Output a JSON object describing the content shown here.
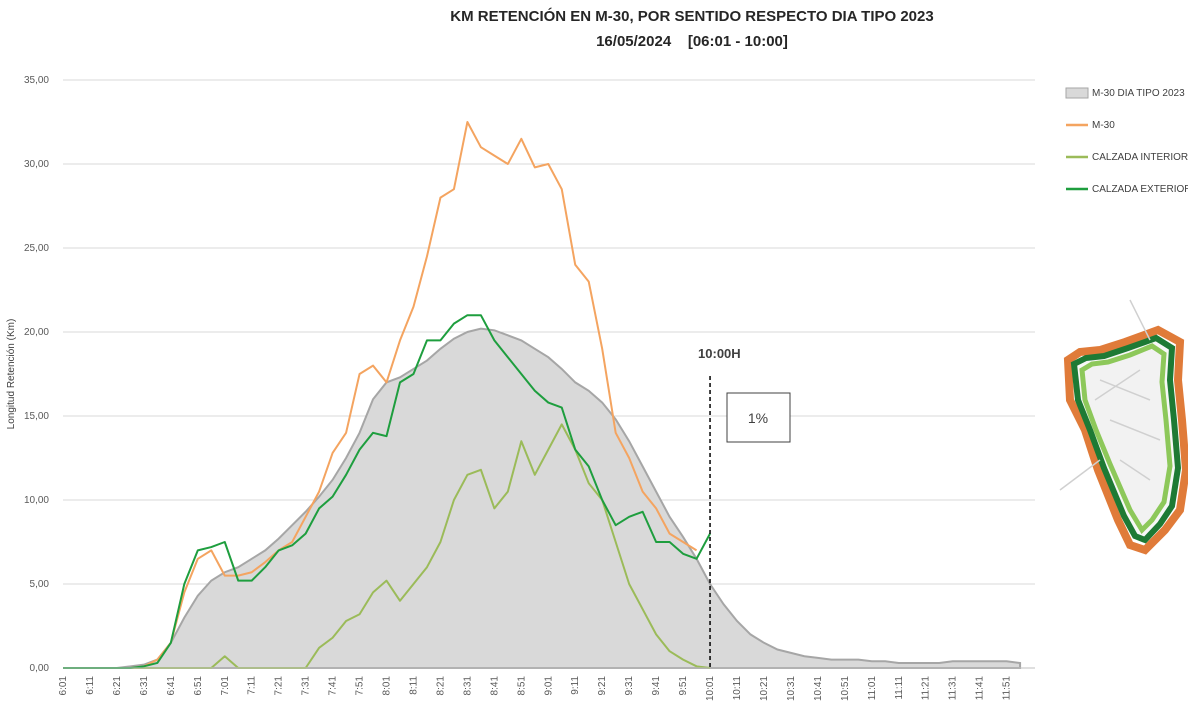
{
  "chart_data": {
    "type": "line",
    "title": "KM RETENCIÓN EN M-30, POR SENTIDO RESPECTO DIA TIPO 2023",
    "subtitle": "16/05/2024    [06:01 - 10:00]",
    "y_label": "Longitud Retención (Km)",
    "categories": [
      "6:01",
      null,
      "6:11",
      null,
      "6:21",
      null,
      "6:31",
      null,
      "6:41",
      null,
      "6:51",
      null,
      "7:01",
      null,
      "7:11",
      null,
      "7:21",
      null,
      "7:31",
      null,
      "7:41",
      null,
      "7:51",
      null,
      "8:01",
      null,
      "8:11",
      null,
      "8:21",
      null,
      "8:31",
      null,
      "8:41",
      null,
      "8:51",
      null,
      "9:01",
      null,
      "9:11",
      null,
      "9:21",
      null,
      "9:31",
      null,
      "9:41",
      null,
      "9:51",
      null,
      "10:01",
      null,
      "10:11",
      null,
      "10:21",
      null,
      "10:31",
      null,
      "10:41",
      null,
      "10:51",
      null,
      "11:01",
      null,
      "11:11",
      null,
      "11:21",
      null,
      "11:31",
      null,
      "11:41",
      null,
      "11:51",
      null
    ],
    "series": [
      {
        "name": "M-30 DIA TIPO 2023",
        "kind": "area",
        "color": "#d9d9d9",
        "edge": "#a6a6a6",
        "values": [
          0,
          0,
          0,
          0,
          0,
          0.1,
          0.2,
          0.5,
          1.5,
          3,
          4.3,
          5.2,
          5.7,
          6,
          6.5,
          7,
          7.7,
          8.5,
          9.3,
          10.2,
          11.2,
          12.5,
          14,
          16,
          17,
          17.3,
          17.8,
          18.3,
          19,
          19.6,
          20,
          20.2,
          20.1,
          19.8,
          19.5,
          19,
          18.5,
          17.8,
          17,
          16.5,
          15.8,
          14.8,
          13.5,
          12,
          10.5,
          9,
          7.8,
          6.5,
          5,
          3.8,
          2.8,
          2,
          1.5,
          1.1,
          0.9,
          0.7,
          0.6,
          0.5,
          0.5,
          0.5,
          0.4,
          0.4,
          0.3,
          0.3,
          0.3,
          0.3,
          0.4,
          0.4,
          0.4,
          0.4,
          0.4,
          0.3
        ]
      },
      {
        "name": "M-30",
        "kind": "line",
        "color": "#f4a460",
        "values": [
          0,
          0,
          0,
          0,
          0,
          0,
          0.1,
          0.5,
          1.5,
          4.5,
          6.5,
          7,
          5.5,
          5.5,
          5.7,
          6.3,
          7,
          7.5,
          9,
          10.5,
          12.8,
          14,
          17.5,
          18,
          17,
          19.5,
          21.5,
          24.5,
          28,
          28.5,
          32.5,
          31,
          30.5,
          30,
          31.5,
          29.8,
          30,
          28.5,
          24,
          23,
          19,
          14,
          12.5,
          10.5,
          9.5,
          8,
          7.5,
          7,
          null,
          null,
          null,
          null,
          null,
          null,
          null,
          null,
          null,
          null,
          null,
          null,
          null,
          null,
          null,
          null,
          null,
          null,
          null,
          null,
          null,
          null,
          null,
          null
        ]
      },
      {
        "name": "CALZADA INTERIOR",
        "kind": "line",
        "color": "#9bbb59",
        "values": [
          0,
          0,
          0,
          0,
          0,
          0,
          0,
          0,
          0,
          0,
          0,
          0,
          0.7,
          0,
          0,
          0,
          0,
          0,
          0,
          1.2,
          1.8,
          2.8,
          3.2,
          4.5,
          5.2,
          4,
          5,
          6,
          7.5,
          10,
          11.5,
          11.8,
          9.5,
          10.5,
          13.5,
          11.5,
          13,
          14.5,
          13,
          11,
          10,
          7.5,
          5,
          3.5,
          2,
          1,
          0.5,
          0.1,
          0,
          null,
          null,
          null,
          null,
          null,
          null,
          null,
          null,
          null,
          null,
          null,
          null,
          null,
          null,
          null,
          null,
          null,
          null,
          null,
          null,
          null,
          null,
          null
        ]
      },
      {
        "name": "CALZADA EXTERIOR",
        "kind": "line",
        "color": "#1e9e3e",
        "values": [
          0,
          0,
          0,
          0,
          0,
          0,
          0.1,
          0.3,
          1.5,
          5,
          7,
          7.2,
          7.5,
          5.2,
          5.2,
          6,
          7,
          7.3,
          8,
          9.5,
          10.2,
          11.5,
          13,
          14,
          13.8,
          17,
          17.5,
          19.5,
          19.5,
          20.5,
          21,
          21,
          19.5,
          18.5,
          17.5,
          16.5,
          15.8,
          15.5,
          13,
          12,
          10,
          8.5,
          9,
          9.3,
          7.5,
          7.5,
          6.8,
          6.5,
          8,
          null,
          null,
          null,
          null,
          null,
          null,
          null,
          null,
          null,
          null,
          null,
          null,
          null,
          null,
          null,
          null,
          null,
          null,
          null,
          null,
          null,
          null,
          null
        ]
      }
    ],
    "ylim": [
      0,
      35
    ],
    "yticks": [
      {
        "value": 0,
        "label": "0,00"
      },
      {
        "value": 5,
        "label": "5,00"
      },
      {
        "value": 10,
        "label": "10,00"
      },
      {
        "value": 15,
        "label": "15,00"
      },
      {
        "value": 20,
        "label": "20,00"
      },
      {
        "value": 25,
        "label": "25,00"
      },
      {
        "value": 30,
        "label": "30,00"
      },
      {
        "value": 35,
        "label": "35,00"
      }
    ],
    "grid": true,
    "legend": "right",
    "marker_line": {
      "label": "10:00H",
      "category": 48
    },
    "box_label": "1%"
  }
}
